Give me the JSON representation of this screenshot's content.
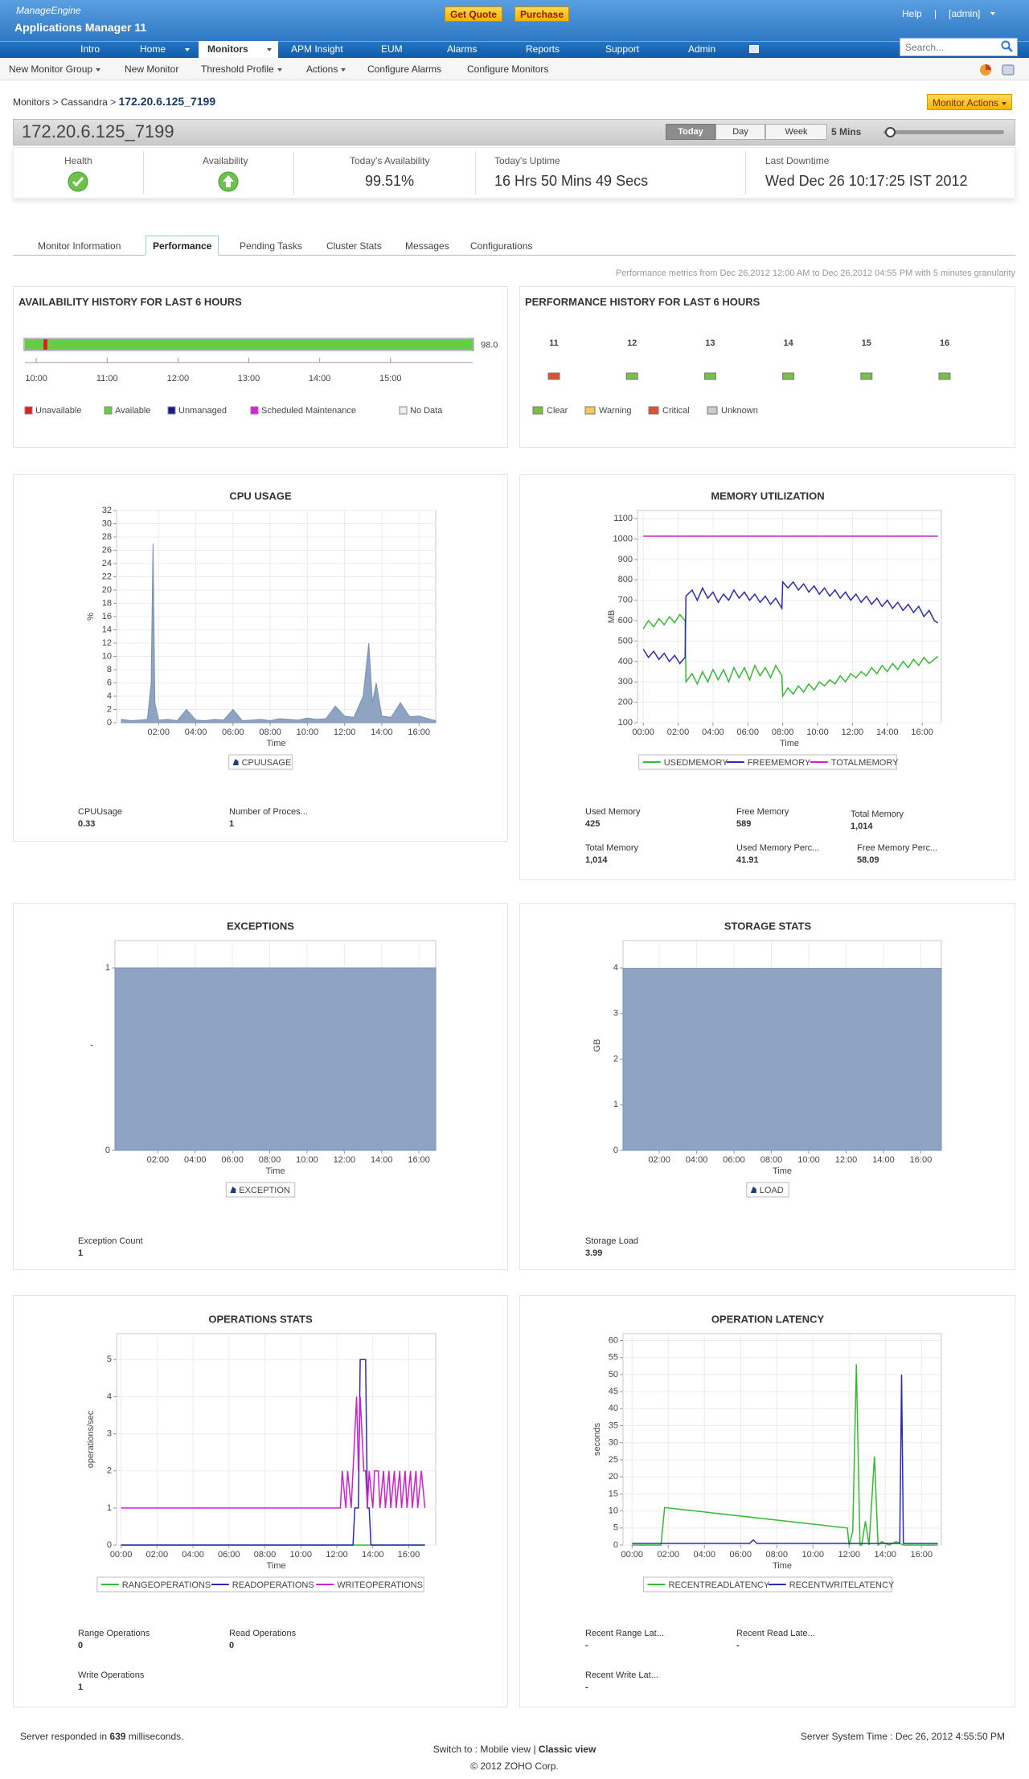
{
  "header": {
    "brand": "ManageEngine",
    "product": "Applications Manager 11",
    "buttons": [
      "Get Quote",
      "Purchase"
    ],
    "help": "Help",
    "separator": "|",
    "user": "[admin]"
  },
  "nav": {
    "tabs": [
      "Intro",
      "Home",
      "Monitors",
      "APM Insight",
      "EUM",
      "Alarms",
      "Reports",
      "Support",
      "Admin"
    ],
    "search_placeholder": "Search..."
  },
  "submenu": [
    "New Monitor Group",
    "New Monitor",
    "Threshold Profile",
    "Actions",
    "Configure Alarms",
    "Configure Monitors"
  ],
  "breadcrumb": {
    "items": [
      "Monitors",
      "Cassandra",
      "172.20.6.125_7199"
    ],
    "separator": ">",
    "monitor_actions": "Monitor Actions"
  },
  "title_bar": {
    "name": "172.20.6.125_7199",
    "periods": [
      "Today",
      "Day",
      "Week"
    ],
    "interval": "5 Mins"
  },
  "summary": [
    {
      "label": "Health"
    },
    {
      "label": "Availability"
    },
    {
      "label": "Today's Availability",
      "value": "99.51%"
    },
    {
      "label": "Today's Uptime",
      "value": "16 Hrs 50 Mins 49 Secs"
    },
    {
      "label": "Last Downtime",
      "value": "Wed Dec 26 10:17:25 IST 2012"
    }
  ],
  "tabs": {
    "items": [
      "Monitor Information",
      "Performance",
      "Pending Tasks",
      "Cluster Stats",
      "Messages",
      "Configurations"
    ],
    "active": 1
  },
  "note": "Performance metrics from Dec 26,2012 12:00 AM to Dec 26,2012 04:55 PM with 5 minutes granularity",
  "chart_data": [
    {
      "type": "timeline",
      "title": "AVAILABILITY HISTORY FOR LAST 6 HOURS",
      "xlim": [
        9.84,
        16.16
      ],
      "xticks": [
        {
          "value": 10,
          "label": "10:00"
        },
        {
          "value": 11,
          "label": "11:00"
        },
        {
          "value": 12,
          "label": "12:00"
        },
        {
          "value": 13,
          "label": "13:00"
        },
        {
          "value": 14,
          "label": "14:00"
        },
        {
          "value": 15,
          "label": "15:00"
        }
      ],
      "value": 98,
      "value_label": "98.0",
      "series": [
        {
          "name": "Unavailable",
          "color": "#e02020",
          "spans": [
            [
              10.1,
              10.16
            ]
          ]
        },
        {
          "name": "Available",
          "color": "#66cc44",
          "spans": [
            [
              9.84,
              10.1
            ],
            [
              10.16,
              16.16
            ]
          ]
        },
        {
          "name": "Unmanaged",
          "color": "#1a1a8c",
          "spans": []
        },
        {
          "name": "Scheduled Maintenance",
          "color": "#e020e0",
          "spans": []
        },
        {
          "name": "No Data",
          "color": "#eeeeee",
          "spans": []
        }
      ]
    },
    {
      "type": "status-grid",
      "title": "PERFORMANCE HISTORY FOR LAST 6 HOURS",
      "categories": [
        "11",
        "12",
        "13",
        "14",
        "15",
        "16"
      ],
      "status": [
        2,
        0,
        0,
        0,
        0,
        0
      ],
      "series": [
        {
          "name": "Clear",
          "color": "#77c043"
        },
        {
          "name": "Warning",
          "color": "#f7c85a"
        },
        {
          "name": "Critical",
          "color": "#e0522e"
        },
        {
          "name": "Unknown",
          "color": "#cccccc"
        }
      ]
    },
    {
      "type": "area",
      "title": "CPU USAGE",
      "xlabel": "Time",
      "ylabel": "%",
      "grid": true,
      "xlim": [
        -0.26,
        16.9
      ],
      "xticks": [
        {
          "value": 2,
          "label": "02:00"
        },
        {
          "value": 4,
          "label": "04:00"
        },
        {
          "value": 6,
          "label": "06:00"
        },
        {
          "value": 8,
          "label": "08:00"
        },
        {
          "value": 10,
          "label": "10:00"
        },
        {
          "value": 12,
          "label": "12:00"
        },
        {
          "value": 14,
          "label": "14:00"
        },
        {
          "value": 16,
          "label": "16:00"
        }
      ],
      "ylim": [
        0,
        32
      ],
      "yticks": [
        0,
        2,
        4,
        6,
        8,
        10,
        12,
        14,
        16,
        18,
        20,
        22,
        24,
        26,
        28,
        30,
        32
      ],
      "x": [
        0,
        0.5,
        1,
        1.4,
        1.6,
        1.7,
        1.8,
        2,
        2.5,
        3,
        3.5,
        4,
        4.5,
        5,
        5.5,
        6,
        6.5,
        7,
        7.5,
        8,
        8.5,
        9,
        9.5,
        10,
        10.5,
        11,
        11.5,
        12,
        12.5,
        13,
        13.3,
        13.5,
        13.7,
        14,
        14.5,
        15,
        15.5,
        16,
        16.5,
        16.9
      ],
      "series": [
        {
          "name": "CPUUSAGE",
          "color": "#8ea4c2",
          "values": [
            0.5,
            0.3,
            0.4,
            0.5,
            6,
            27,
            3,
            0.4,
            0.5,
            0.3,
            2,
            0.4,
            0.3,
            0.5,
            0.4,
            2,
            0.3,
            0.4,
            0.5,
            0.3,
            0.6,
            0.5,
            0.4,
            0.7,
            0.5,
            0.6,
            2.5,
            1,
            0.8,
            4,
            12,
            3,
            6,
            1,
            0.8,
            3,
            0.9,
            1,
            0.6,
            0.3
          ]
        }
      ]
    },
    {
      "type": "line",
      "title": "MEMORY UTILIZATION",
      "xlabel": "Time",
      "ylabel": "MB",
      "grid": true,
      "xlim": [
        -0.33,
        17.1
      ],
      "xticks": [
        {
          "value": 0,
          "label": "00:00"
        },
        {
          "value": 2,
          "label": "02:00"
        },
        {
          "value": 4,
          "label": "04:00"
        },
        {
          "value": 6,
          "label": "06:00"
        },
        {
          "value": 8,
          "label": "08:00"
        },
        {
          "value": 10,
          "label": "10:00"
        },
        {
          "value": 12,
          "label": "12:00"
        },
        {
          "value": 14,
          "label": "14:00"
        },
        {
          "value": 16,
          "label": "16:00"
        }
      ],
      "ylim": [
        100,
        1140
      ],
      "yticks": [
        100,
        200,
        300,
        400,
        500,
        600,
        700,
        800,
        900,
        1000,
        1100
      ],
      "x": [
        0,
        0.3,
        0.6,
        0.9,
        1.2,
        1.5,
        1.8,
        2.1,
        2.4,
        2.45,
        2.8,
        3.1,
        3.4,
        3.7,
        4,
        4.3,
        4.6,
        4.9,
        5.2,
        5.5,
        5.8,
        6.1,
        6.4,
        6.7,
        7,
        7.3,
        7.6,
        7.95,
        8,
        8.3,
        8.6,
        8.9,
        9.2,
        9.5,
        9.8,
        10.1,
        10.4,
        10.7,
        11,
        11.3,
        11.6,
        11.9,
        12.2,
        12.5,
        12.8,
        13.1,
        13.4,
        13.7,
        14,
        14.3,
        14.6,
        14.9,
        15.2,
        15.5,
        15.8,
        16.1,
        16.4,
        16.7,
        16.9
      ],
      "series": [
        {
          "name": "USEDMEMORY",
          "color": "#33bb33",
          "values": [
            560,
            600,
            570,
            610,
            580,
            620,
            590,
            630,
            600,
            300,
            340,
            290,
            350,
            300,
            360,
            310,
            360,
            300,
            370,
            320,
            370,
            310,
            380,
            330,
            370,
            320,
            380,
            330,
            230,
            270,
            240,
            280,
            250,
            290,
            260,
            300,
            280,
            310,
            290,
            330,
            300,
            340,
            320,
            350,
            330,
            370,
            340,
            380,
            350,
            390,
            360,
            400,
            370,
            410,
            380,
            420,
            390,
            410,
            425
          ]
        },
        {
          "name": "FREEMEMORY",
          "color": "#2b2bb5",
          "values": [
            460,
            420,
            450,
            410,
            440,
            400,
            430,
            390,
            420,
            720,
            750,
            700,
            760,
            710,
            740,
            690,
            730,
            700,
            750,
            710,
            740,
            700,
            730,
            690,
            720,
            680,
            710,
            660,
            790,
            760,
            790,
            750,
            780,
            740,
            770,
            730,
            760,
            720,
            750,
            710,
            740,
            700,
            730,
            690,
            720,
            680,
            710,
            670,
            700,
            660,
            690,
            650,
            680,
            640,
            670,
            620,
            650,
            600,
            589
          ]
        },
        {
          "name": "TOTALMEMORY",
          "color": "#cc22cc",
          "x": [
            0,
            16.9
          ],
          "values": [
            1014,
            1014
          ]
        }
      ]
    },
    {
      "type": "area",
      "title": "EXCEPTIONS",
      "xlabel": "Time",
      "ylabel": ",",
      "grid": true,
      "xlim": [
        -0.3,
        16.9
      ],
      "xticks": [
        {
          "value": 2,
          "label": "02:00"
        },
        {
          "value": 4,
          "label": "04:00"
        },
        {
          "value": 6,
          "label": "06:00"
        },
        {
          "value": 8,
          "label": "08:00"
        },
        {
          "value": 10,
          "label": "10:00"
        },
        {
          "value": 12,
          "label": "12:00"
        },
        {
          "value": 14,
          "label": "14:00"
        },
        {
          "value": 16,
          "label": "16:00"
        }
      ],
      "ylim": [
        0,
        1.15
      ],
      "yticks": [
        0,
        1
      ],
      "x": [
        -0.3,
        16.9
      ],
      "series": [
        {
          "name": "EXCEPTION",
          "color": "#8ea4c2",
          "values": [
            1,
            1
          ]
        }
      ]
    },
    {
      "type": "area",
      "title": "STORAGE STATS",
      "xlabel": "Time",
      "ylabel": "GB",
      "grid": true,
      "xlim": [
        0.06,
        17.1
      ],
      "xticks": [
        {
          "value": 2,
          "label": "02:00"
        },
        {
          "value": 4,
          "label": "04:00"
        },
        {
          "value": 6,
          "label": "06:00"
        },
        {
          "value": 8,
          "label": "08:00"
        },
        {
          "value": 10,
          "label": "10:00"
        },
        {
          "value": 12,
          "label": "12:00"
        },
        {
          "value": 14,
          "label": "14:00"
        },
        {
          "value": 16,
          "label": "16:00"
        }
      ],
      "ylim": [
        0,
        4.6
      ],
      "yticks": [
        0,
        1,
        2,
        3,
        4
      ],
      "x": [
        0.06,
        17.1
      ],
      "series": [
        {
          "name": "LOAD",
          "color": "#8ea4c2",
          "values": [
            3.99,
            3.99
          ]
        }
      ]
    },
    {
      "type": "line",
      "title": "OPERATIONS STATS",
      "xlabel": "Time",
      "ylabel": "operations/sec",
      "grid": true,
      "xlim": [
        -0.25,
        17.5
      ],
      "xticks": [
        {
          "value": 0,
          "label": "00:00"
        },
        {
          "value": 2,
          "label": "02:00"
        },
        {
          "value": 4,
          "label": "04:00"
        },
        {
          "value": 6,
          "label": "06:00"
        },
        {
          "value": 8,
          "label": "08:00"
        },
        {
          "value": 10,
          "label": "10:00"
        },
        {
          "value": 12,
          "label": "12:00"
        },
        {
          "value": 14,
          "label": "14:00"
        },
        {
          "value": 16,
          "label": "16:00"
        }
      ],
      "ylim": [
        0,
        5.7
      ],
      "yticks": [
        0,
        1,
        2,
        3,
        4,
        5
      ],
      "series": [
        {
          "name": "RANGEOPERATIONS",
          "color": "#33bb33",
          "x": [
            0,
            16.9
          ],
          "values": [
            0,
            0
          ]
        },
        {
          "name": "READOPERATIONS",
          "color": "#2b2bb5",
          "x": [
            0,
            12.9,
            13.0,
            13.2,
            13.3,
            13.4,
            13.6,
            13.7,
            13.8,
            13.9,
            16.9
          ],
          "values": [
            0,
            0,
            1,
            1,
            5,
            5,
            5,
            1,
            1,
            0,
            0
          ]
        },
        {
          "name": "WRITEOPERATIONS",
          "color": "#cc22cc",
          "x": [
            0,
            12.2,
            12.3,
            12.5,
            12.6,
            12.8,
            12.9,
            13.0,
            13.1,
            13.2,
            13.3,
            13.4,
            13.5,
            13.6,
            13.7,
            13.8,
            14.0,
            14.1,
            14.3,
            14.4,
            14.6,
            14.7,
            14.9,
            15.0,
            15.2,
            15.3,
            15.5,
            15.6,
            15.8,
            15.9,
            16.1,
            16.2,
            16.4,
            16.5,
            16.7,
            16.9
          ],
          "values": [
            1,
            1,
            2,
            1,
            2,
            1,
            2,
            3,
            4,
            2,
            4,
            3,
            2,
            2,
            1,
            2,
            1,
            2,
            2,
            1,
            2,
            1,
            2,
            1,
            2,
            1,
            2,
            1,
            2,
            1,
            2,
            1,
            2,
            1,
            2,
            1
          ]
        }
      ]
    },
    {
      "type": "line",
      "title": "OPERATION LATENCY",
      "xlabel": "Time",
      "ylabel": "seconds",
      "grid": true,
      "xlim": [
        -0.5,
        17.1
      ],
      "xticks": [
        {
          "value": 0,
          "label": "00:00"
        },
        {
          "value": 2,
          "label": "02:00"
        },
        {
          "value": 4,
          "label": "04:00"
        },
        {
          "value": 6,
          "label": "06:00"
        },
        {
          "value": 8,
          "label": "08:00"
        },
        {
          "value": 10,
          "label": "10:00"
        },
        {
          "value": 12,
          "label": "12:00"
        },
        {
          "value": 14,
          "label": "14:00"
        },
        {
          "value": 16,
          "label": "16:00"
        }
      ],
      "ylim": [
        0,
        62
      ],
      "yticks": [
        0,
        5,
        10,
        15,
        20,
        25,
        30,
        35,
        40,
        45,
        50,
        55,
        60
      ],
      "series": [
        {
          "name": "RECENTREADLATENCY",
          "color": "#33bb33",
          "x": [
            0,
            1.6,
            1.8,
            11.9,
            12.0,
            12.2,
            12.4,
            12.6,
            12.7,
            12.9,
            13.1,
            13.4,
            13.6,
            13.8,
            14.2,
            14.6,
            15.0,
            16.9
          ],
          "values": [
            0,
            0,
            11,
            5,
            0,
            4,
            53,
            0,
            0,
            7,
            0,
            26,
            0,
            1,
            0,
            1,
            0,
            0
          ]
        },
        {
          "name": "RECENTWRITELATENCY",
          "color": "#2b2bb5",
          "x": [
            0,
            6.5,
            6.7,
            6.9,
            14.7,
            14.8,
            14.9,
            15.0,
            15.1,
            16.9
          ],
          "values": [
            0.5,
            0.5,
            1.5,
            0.5,
            0.5,
            0.5,
            50,
            0.5,
            0.5,
            0.5
          ]
        }
      ]
    }
  ],
  "metrics": [
    [
      {
        "label": "CPUUsage",
        "value": "0.33"
      },
      {
        "label": "Number of Proces...",
        "value": "1"
      }
    ],
    [
      {
        "label": "Used Memory",
        "value": "425"
      },
      {
        "label": "Free Memory",
        "value": "589"
      },
      {
        "label": "Total Memory",
        "value": "1,014"
      },
      {
        "label": "Total Memory",
        "value": "1,014"
      },
      {
        "label": "Used Memory Perc...",
        "value": "41.91"
      },
      {
        "label": "Free Memory Perc...",
        "value": "58.09"
      }
    ],
    [
      {
        "label": "Exception Count",
        "value": "1"
      }
    ],
    [
      {
        "label": "Storage Load",
        "value": "3.99"
      }
    ],
    [
      {
        "label": "Range Operations",
        "value": "0"
      },
      {
        "label": "Read Operations",
        "value": "0"
      },
      {
        "label": "Write Operations",
        "value": "1"
      }
    ],
    [
      {
        "label": "Recent Range Lat...",
        "value": "-"
      },
      {
        "label": "Recent Read Late...",
        "value": "-"
      },
      {
        "label": "Recent Write Lat...",
        "value": "-"
      }
    ]
  ],
  "footer": {
    "response_prefix": "Server responded in",
    "response_ms": "639",
    "response_suffix": "milliseconds.",
    "server_time": "Server System Time : Dec 26, 2012 4:55:50 PM",
    "switch_prefix": "Switch to :",
    "mobile": "Mobile view",
    "separator": "|",
    "classic": "Classic view",
    "copyright": "© 2012 ZOHO Corp."
  }
}
